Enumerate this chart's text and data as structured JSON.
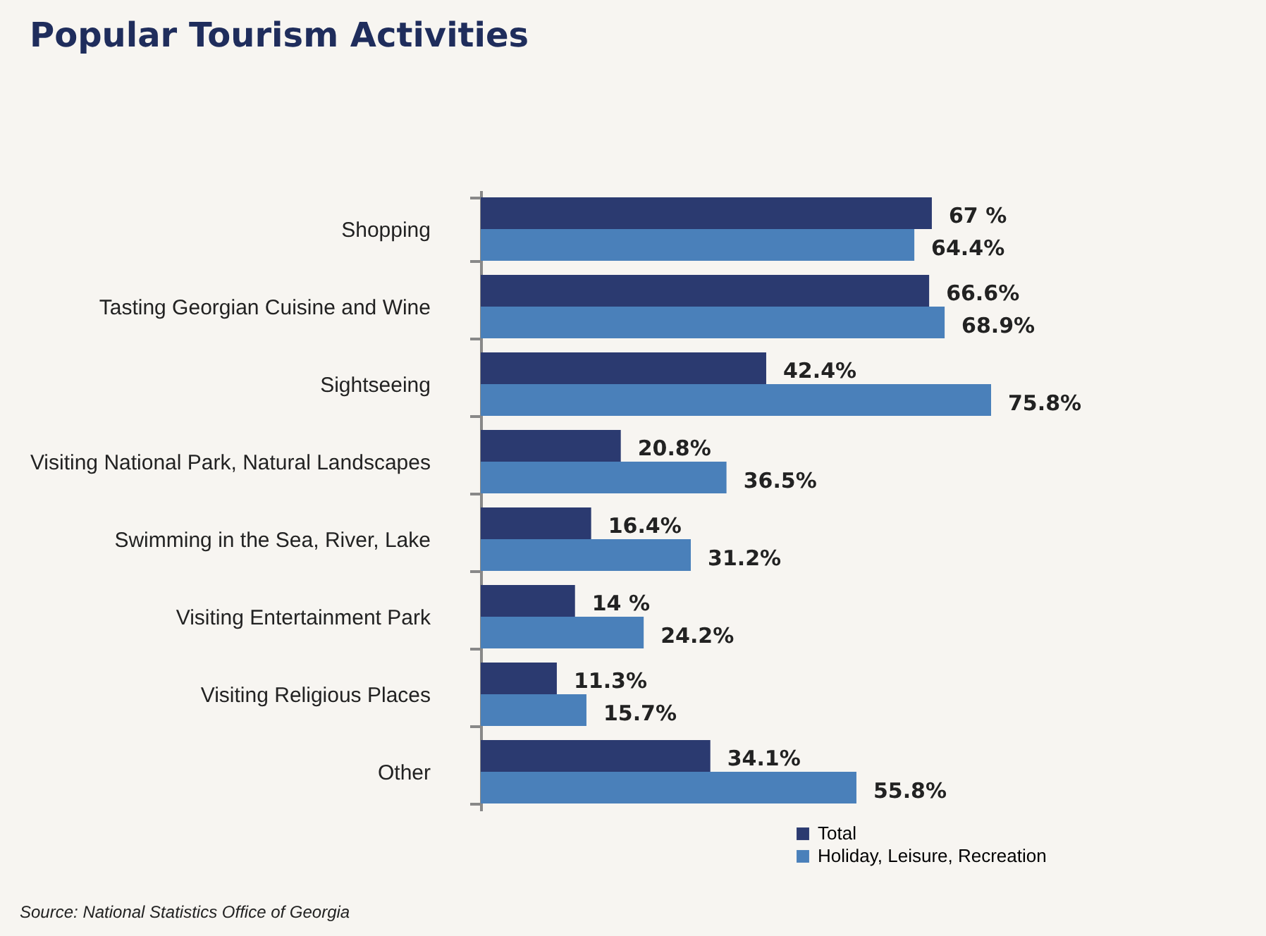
{
  "chart_data": {
    "type": "bar",
    "orientation": "horizontal",
    "title": "Popular Tourism Activities",
    "categories": [
      "Shopping",
      "Tasting Georgian Cuisine and Wine",
      "Sightseeing",
      "Visiting National Park, Natural Landscapes",
      "Swimming in the Sea, River, Lake",
      "Visiting Entertainment Park",
      "Visiting Religious Places",
      "Other"
    ],
    "series": [
      {
        "name": "Total",
        "color": "#2b3a70",
        "values": [
          67,
          66.6,
          42.4,
          20.8,
          16.4,
          14,
          11.3,
          34.1
        ],
        "value_labels": [
          "67 %",
          "66.6%",
          "42.4%",
          "20.8%",
          "16.4%",
          "14 %",
          "11.3%",
          "34.1%"
        ]
      },
      {
        "name": "Holiday, Leisure, Recreation",
        "color": "#4a80ba",
        "values": [
          64.4,
          68.9,
          75.8,
          36.5,
          31.2,
          24.2,
          15.7,
          55.8
        ],
        "value_labels": [
          "64.4%",
          "68.9%",
          "75.8%",
          "36.5%",
          "31.2%",
          "24.2%",
          "15.7%",
          "55.8%"
        ]
      }
    ],
    "legend": "bottom right",
    "annotations": [
      "Source: National Statistics Office of Georgia"
    ]
  }
}
